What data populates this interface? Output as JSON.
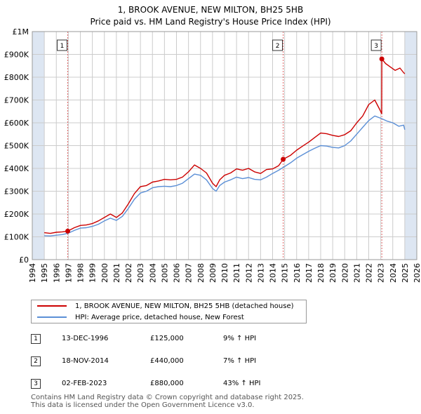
{
  "title_line1": "1, BROOK AVENUE, NEW MILTON, BH25 5HB",
  "title_line2": "Price paid vs. HM Land Registry's House Price Index (HPI)",
  "colors": {
    "property": "#cc0000",
    "hpi": "#5b8fd6",
    "shade": "#dde6f2",
    "grid": "#cccccc",
    "marker_line": "#e06666"
  },
  "chart_data": {
    "type": "line",
    "title": "Price paid vs. HM Land Registry's House Price Index (HPI)",
    "xlabel": "",
    "ylabel": "",
    "xlim": [
      1994,
      2026
    ],
    "ylim": [
      0,
      1000000
    ],
    "x_ticks": [
      "1994",
      "1995",
      "1996",
      "1997",
      "1998",
      "1999",
      "2000",
      "2001",
      "2002",
      "2003",
      "2004",
      "2005",
      "2006",
      "2007",
      "2008",
      "2009",
      "2010",
      "2011",
      "2012",
      "2013",
      "2014",
      "2015",
      "2016",
      "2017",
      "2018",
      "2019",
      "2020",
      "2021",
      "2022",
      "2023",
      "2024",
      "2025",
      "2026"
    ],
    "y_ticks": [
      {
        "value": 0,
        "label": "£0"
      },
      {
        "value": 100000,
        "label": "£100K"
      },
      {
        "value": 200000,
        "label": "£200K"
      },
      {
        "value": 300000,
        "label": "£300K"
      },
      {
        "value": 400000,
        "label": "£400K"
      },
      {
        "value": 500000,
        "label": "£500K"
      },
      {
        "value": 600000,
        "label": "£600K"
      },
      {
        "value": 700000,
        "label": "£700K"
      },
      {
        "value": 800000,
        "label": "£800K"
      },
      {
        "value": 900000,
        "label": "£900K"
      },
      {
        "value": 1000000,
        "label": "£1M"
      }
    ],
    "shaded_ranges": [
      [
        1994,
        1995.0
      ],
      [
        2025.0,
        2026
      ]
    ],
    "series": [
      {
        "name": "1, BROOK AVENUE, NEW MILTON, BH25 5HB (detached house)",
        "color": "#cc0000",
        "x": [
          1995.0,
          1995.5,
          1996.0,
          1996.5,
          1996.95,
          1997.5,
          1998.0,
          1998.5,
          1999.0,
          1999.5,
          2000.0,
          2000.5,
          2001.0,
          2001.5,
          2002.0,
          2002.5,
          2003.0,
          2003.5,
          2004.0,
          2004.5,
          2005.0,
          2005.5,
          2006.0,
          2006.5,
          2007.0,
          2007.5,
          2008.0,
          2008.5,
          2009.0,
          2009.3,
          2009.6,
          2010.0,
          2010.5,
          2011.0,
          2011.5,
          2012.0,
          2012.5,
          2013.0,
          2013.5,
          2014.0,
          2014.5,
          2014.88,
          2015.5,
          2016.0,
          2016.5,
          2017.0,
          2017.5,
          2018.0,
          2018.5,
          2019.0,
          2019.5,
          2020.0,
          2020.5,
          2021.0,
          2021.5,
          2022.0,
          2022.5,
          2022.9,
          2023.08,
          2023.09,
          2023.4,
          2023.8,
          2024.2,
          2024.6,
          2024.9,
          2025.0
        ],
        "y": [
          118000,
          115000,
          120000,
          122000,
          125000,
          140000,
          150000,
          152000,
          158000,
          170000,
          185000,
          200000,
          185000,
          205000,
          245000,
          290000,
          320000,
          325000,
          340000,
          345000,
          352000,
          350000,
          352000,
          362000,
          385000,
          415000,
          400000,
          380000,
          335000,
          320000,
          350000,
          370000,
          380000,
          398000,
          392000,
          400000,
          385000,
          378000,
          395000,
          398000,
          412000,
          440000,
          458000,
          480000,
          498000,
          515000,
          535000,
          555000,
          552000,
          545000,
          540000,
          548000,
          565000,
          600000,
          630000,
          680000,
          700000,
          660000,
          640000,
          880000,
          860000,
          845000,
          830000,
          840000,
          820000,
          815000
        ]
      },
      {
        "name": "HPI: Average price, detached house, New Forest",
        "color": "#5b8fd6",
        "x": [
          1995.0,
          1995.5,
          1996.0,
          1996.5,
          1997.0,
          1997.5,
          1998.0,
          1998.5,
          1999.0,
          1999.5,
          2000.0,
          2000.5,
          2001.0,
          2001.5,
          2002.0,
          2002.5,
          2003.0,
          2003.5,
          2004.0,
          2004.5,
          2005.0,
          2005.5,
          2006.0,
          2006.5,
          2007.0,
          2007.5,
          2008.0,
          2008.5,
          2009.0,
          2009.3,
          2009.6,
          2010.0,
          2010.5,
          2011.0,
          2011.5,
          2012.0,
          2012.5,
          2013.0,
          2013.5,
          2014.0,
          2014.5,
          2015.0,
          2015.5,
          2016.0,
          2016.5,
          2017.0,
          2017.5,
          2018.0,
          2018.5,
          2019.0,
          2019.5,
          2020.0,
          2020.5,
          2021.0,
          2021.5,
          2022.0,
          2022.5,
          2023.0,
          2023.5,
          2024.0,
          2024.5,
          2024.9,
          2025.0
        ],
        "y": [
          105000,
          104000,
          107000,
          110000,
          116000,
          128000,
          138000,
          140000,
          146000,
          155000,
          170000,
          182000,
          172000,
          190000,
          225000,
          265000,
          292000,
          300000,
          315000,
          320000,
          322000,
          320000,
          325000,
          335000,
          355000,
          375000,
          370000,
          350000,
          312000,
          300000,
          325000,
          340000,
          350000,
          362000,
          355000,
          360000,
          352000,
          350000,
          362000,
          378000,
          392000,
          408000,
          425000,
          445000,
          460000,
          475000,
          488000,
          500000,
          498000,
          492000,
          490000,
          500000,
          520000,
          550000,
          580000,
          610000,
          630000,
          620000,
          608000,
          600000,
          585000,
          590000,
          570000
        ]
      }
    ],
    "markers": [
      {
        "label": "1",
        "x": 1996.95,
        "y": 125000
      },
      {
        "label": "2",
        "x": 2014.88,
        "y": 440000
      },
      {
        "label": "3",
        "x": 2023.09,
        "y": 880000
      }
    ]
  },
  "legend": [
    {
      "label": "1, BROOK AVENUE, NEW MILTON, BH25 5HB (detached house)",
      "color": "#cc0000"
    },
    {
      "label": "HPI: Average price, detached house, New Forest",
      "color": "#5b8fd6"
    }
  ],
  "transactions": [
    {
      "num": "1",
      "date": "13-DEC-1996",
      "price": "£125,000",
      "hpi": "9% ↑ HPI"
    },
    {
      "num": "2",
      "date": "18-NOV-2014",
      "price": "£440,000",
      "hpi": "7% ↑ HPI"
    },
    {
      "num": "3",
      "date": "02-FEB-2023",
      "price": "£880,000",
      "hpi": "43% ↑ HPI"
    }
  ],
  "footer_line1": "Contains HM Land Registry data © Crown copyright and database right 2025.",
  "footer_line2": "This data is licensed under the Open Government Licence v3.0."
}
